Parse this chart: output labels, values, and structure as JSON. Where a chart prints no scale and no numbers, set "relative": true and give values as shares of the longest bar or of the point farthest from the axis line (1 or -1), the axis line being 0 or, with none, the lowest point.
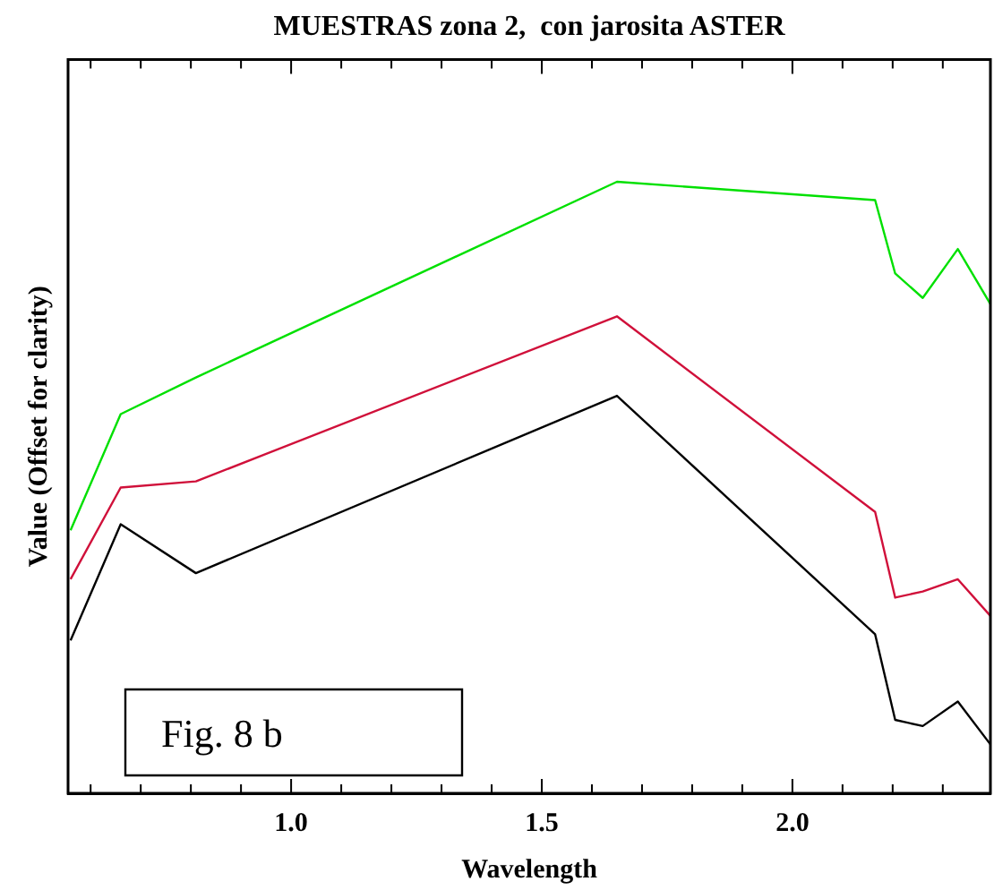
{
  "chart_data": {
    "type": "line",
    "title": "MUESTRAS zona 2,  con jarosita ASTER",
    "xlabel": "Wavelength",
    "ylabel": "Value (Offset for clarity)",
    "relative": true,
    "x": [
      0.56,
      0.66,
      0.81,
      1.65,
      2.165,
      2.205,
      2.26,
      2.33,
      2.395
    ],
    "xlim": [
      0.555,
      2.395
    ],
    "xticks": [
      {
        "value": 0.6,
        "label": null
      },
      {
        "value": 0.7,
        "label": null
      },
      {
        "value": 0.8,
        "label": null
      },
      {
        "value": 0.9,
        "label": null
      },
      {
        "value": 1.0,
        "label": "1.0"
      },
      {
        "value": 1.1,
        "label": null
      },
      {
        "value": 1.2,
        "label": null
      },
      {
        "value": 1.3,
        "label": null
      },
      {
        "value": 1.4,
        "label": null
      },
      {
        "value": 1.5,
        "label": "1.5"
      },
      {
        "value": 1.6,
        "label": null
      },
      {
        "value": 1.7,
        "label": null
      },
      {
        "value": 1.8,
        "label": null
      },
      {
        "value": 1.9,
        "label": null
      },
      {
        "value": 2.0,
        "label": "2.0"
      },
      {
        "value": 2.1,
        "label": null
      },
      {
        "value": 2.2,
        "label": null
      },
      {
        "value": 2.3,
        "label": null
      }
    ],
    "series": [
      {
        "color": "#00e000",
        "values": [
          0.43,
          0.62,
          0.68,
          1,
          0.97,
          0.85,
          0.81,
          0.89,
          0.8
        ]
      },
      {
        "color": "#d0103a",
        "values": [
          0.35,
          0.5,
          0.51,
          0.78,
          0.46,
          0.32,
          0.33,
          0.35,
          0.29
        ]
      },
      {
        "color": "#000000",
        "values": [
          0.25,
          0.44,
          0.36,
          0.65,
          0.26,
          0.12,
          0.11,
          0.15,
          0.08
        ]
      }
    ],
    "annotations": [
      "Fig. 8 b"
    ],
    "grid": false,
    "legend": false,
    "marker": "none",
    "line_style": "solid"
  }
}
